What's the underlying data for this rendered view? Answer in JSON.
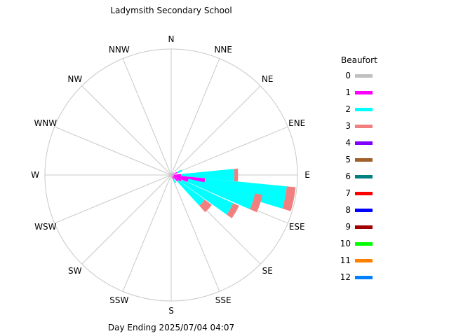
{
  "chart_data": {
    "type": "wind-rose",
    "title": "Ladymsith Secondary School",
    "footer": "Day Ending 2025/07/04 04:07",
    "directions": [
      "N",
      "NNE",
      "NE",
      "ENE",
      "E",
      "ESE",
      "SE",
      "SSE",
      "S",
      "SSW",
      "SW",
      "WSW",
      "W",
      "WNW",
      "NW",
      "NNW"
    ],
    "grid": true,
    "legend": {
      "title": "Beaufort",
      "placement": "right",
      "items": [
        {
          "label": "0",
          "color": "#c0c0c0"
        },
        {
          "label": "1",
          "color": "#ff00ff"
        },
        {
          "label": "2",
          "color": "#00ffff"
        },
        {
          "label": "3",
          "color": "#f08080"
        },
        {
          "label": "4",
          "color": "#8000ff"
        },
        {
          "label": "5",
          "color": "#a0602a"
        },
        {
          "label": "6",
          "color": "#008080"
        },
        {
          "label": "7",
          "color": "#ff0000"
        },
        {
          "label": "8",
          "color": "#0000ff"
        },
        {
          "label": "9",
          "color": "#a00000"
        },
        {
          "label": "10",
          "color": "#00ff00"
        },
        {
          "label": "11",
          "color": "#ff8000"
        },
        {
          "label": "12",
          "color": "#0080ff"
        }
      ]
    },
    "petals": [
      {
        "bearing": 67.5,
        "segments": [
          0.01,
          0.04,
          0.04,
          0
        ]
      },
      {
        "bearing": 90,
        "segments": [
          0.02,
          0.06,
          0.42,
          0.03
        ]
      },
      {
        "bearing": 101.25,
        "segments": [
          0.02,
          0.25,
          0.65,
          0.07
        ]
      },
      {
        "bearing": 108,
        "segments": [
          0.02,
          0.12,
          0.54,
          0.06
        ]
      },
      {
        "bearing": 120,
        "segments": [
          0.02,
          0.07,
          0.45,
          0.05
        ]
      },
      {
        "bearing": 132,
        "segments": [
          0.02,
          0.05,
          0.26,
          0.07
        ]
      },
      {
        "bearing": 150,
        "segments": [
          0.01,
          0.03,
          0.03,
          0
        ]
      }
    ],
    "petal_half_width_deg": 5.6
  }
}
